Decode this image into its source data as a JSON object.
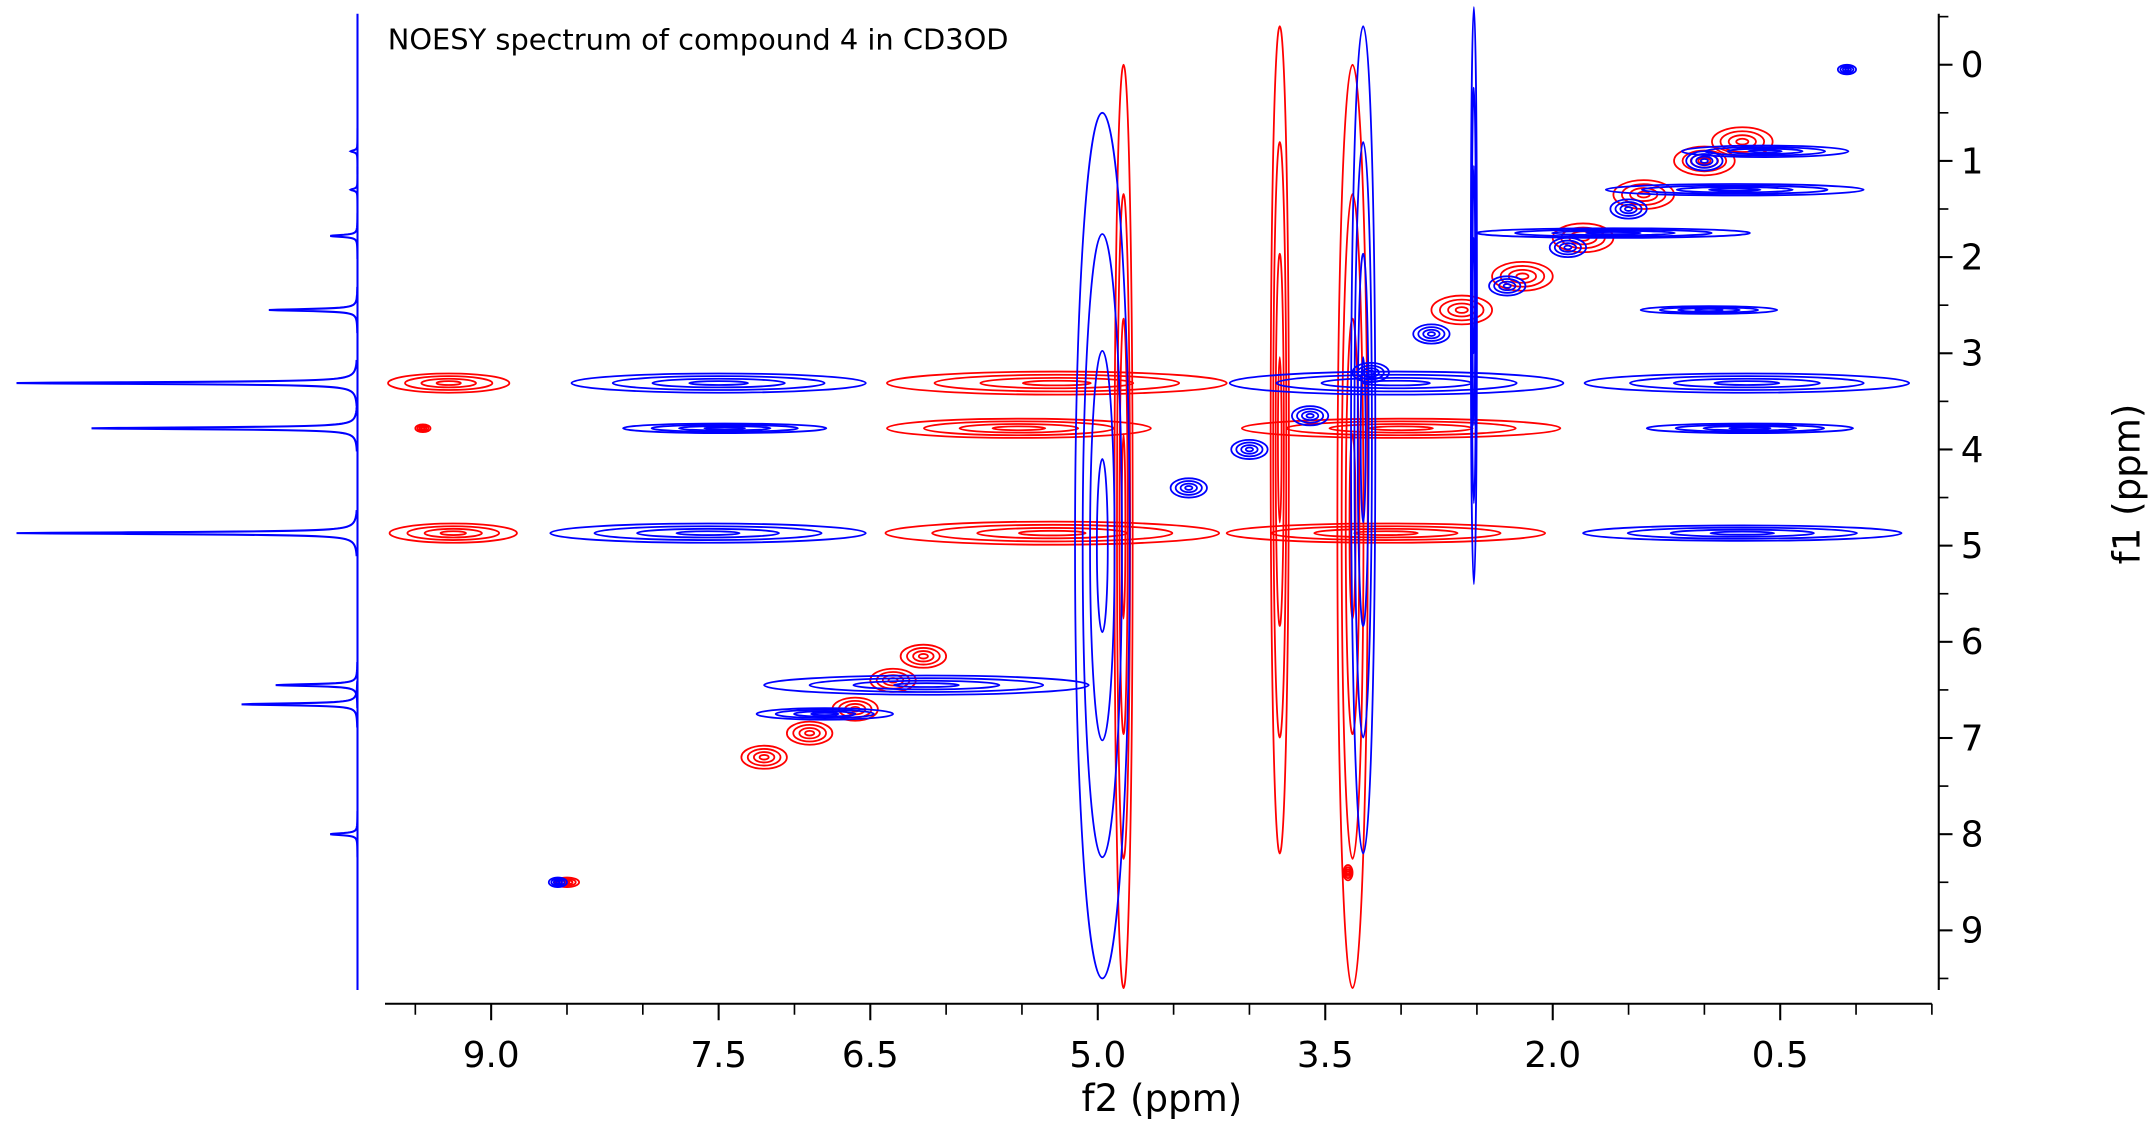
{
  "chart_data": {
    "type": "contour2d",
    "title": "NOESY spectrum of compound 4 in CD3OD",
    "xlabel": "f2 (ppm)",
    "ylabel": "f1 (ppm)",
    "xlim": [
      9.7,
      -0.5
    ],
    "ylim": [
      -0.53,
      9.62
    ],
    "xticks": [
      {
        "value": 9.0,
        "label": "9.0"
      },
      {
        "value": 7.5,
        "label": "7.5"
      },
      {
        "value": 6.5,
        "label": "6.5"
      },
      {
        "value": 5.0,
        "label": "5.0"
      },
      {
        "value": 3.5,
        "label": "3.5"
      },
      {
        "value": 2.0,
        "label": "2.0"
      },
      {
        "value": 0.5,
        "label": "0.5"
      }
    ],
    "xminorticks": [
      9.5,
      8.5,
      8,
      7,
      6,
      5.5,
      4.5,
      4,
      3,
      2.5,
      1.5,
      1,
      0,
      -0.5
    ],
    "yticks": [
      0,
      1,
      2,
      3,
      4,
      5,
      6,
      7,
      8,
      9
    ],
    "yminorticks": [
      -0.5,
      0.5,
      1.5,
      2.5,
      3.5,
      4.5,
      5.5,
      6.5,
      7.5,
      8.5,
      9.5
    ],
    "series": [
      {
        "color": "#ff0000",
        "x": [
          4.83,
          3.8,
          3.32,
          9.28,
          5.27,
          9.45,
          5.52,
          3.0,
          9.25,
          5.3,
          3.1,
          7.2,
          6.9,
          6.6,
          6.35,
          6.15,
          2.6,
          2.2,
          1.8,
          1.4,
          1.0,
          0.75,
          8.5,
          3.35
        ],
        "y": [
          4.8,
          3.9,
          4.8,
          3.31,
          3.31,
          3.78,
          3.78,
          3.78,
          4.87,
          4.87,
          4.87,
          7.2,
          6.95,
          6.7,
          6.4,
          6.15,
          2.55,
          2.2,
          1.8,
          1.35,
          1.0,
          0.8,
          8.5,
          8.4
        ],
        "rx": [
          0.06,
          0.06,
          0.1,
          0.4,
          1.12,
          0.05,
          0.87,
          1.05,
          0.42,
          1.1,
          1.05,
          0.15,
          0.15,
          0.15,
          0.15,
          0.15,
          0.2,
          0.2,
          0.2,
          0.2,
          0.2,
          0.2,
          0.08,
          0.03
        ],
        "ry": [
          4.8,
          4.3,
          4.8,
          0.1,
          0.12,
          0.04,
          0.1,
          0.1,
          0.1,
          0.12,
          0.1,
          0.12,
          0.12,
          0.12,
          0.12,
          0.12,
          0.15,
          0.15,
          0.15,
          0.15,
          0.15,
          0.15,
          0.05,
          0.08
        ]
      },
      {
        "color": "#0000ff",
        "x": [
          4.97,
          3.25,
          2.52,
          7.5,
          3.03,
          0.72,
          7.46,
          0.7,
          7.57,
          0.75,
          6.13,
          6.8,
          4.4,
          4.0,
          3.6,
          3.2,
          2.8,
          2.3,
          1.9,
          1.5,
          1.0,
          0.6,
          0.8,
          8.56,
          0.06,
          0.97,
          1.6
        ],
        "y": [
          5.0,
          3.9,
          2.4,
          3.31,
          3.31,
          3.31,
          3.78,
          3.78,
          4.87,
          4.87,
          6.45,
          6.75,
          4.4,
          4.0,
          3.65,
          3.2,
          2.8,
          2.3,
          1.9,
          1.5,
          1.0,
          0.9,
          1.3,
          8.5,
          0.05,
          2.55,
          1.75
        ],
        "rx": [
          0.18,
          0.08,
          0.02,
          0.97,
          1.1,
          1.07,
          0.67,
          0.68,
          1.04,
          1.05,
          1.07,
          0.45,
          0.12,
          0.12,
          0.12,
          0.12,
          0.12,
          0.12,
          0.12,
          0.12,
          0.12,
          0.55,
          0.85,
          0.06,
          0.06,
          0.45,
          0.9
        ],
        "ry": [
          4.5,
          4.3,
          3.0,
          0.1,
          0.12,
          0.1,
          0.05,
          0.05,
          0.1,
          0.08,
          0.1,
          0.06,
          0.1,
          0.1,
          0.1,
          0.1,
          0.1,
          0.1,
          0.1,
          0.1,
          0.1,
          0.06,
          0.06,
          0.05,
          0.05,
          0.04,
          0.05
        ]
      }
    ],
    "projection": {
      "color": "#0000ff",
      "ppm": [
        3.31,
        3.78,
        4.87,
        1.78,
        2.55,
        6.45,
        6.65,
        8.0,
        1.3,
        0.9
      ],
      "intensity": [
        100,
        78,
        100,
        8,
        26,
        24,
        34,
        8,
        2,
        2
      ]
    }
  }
}
